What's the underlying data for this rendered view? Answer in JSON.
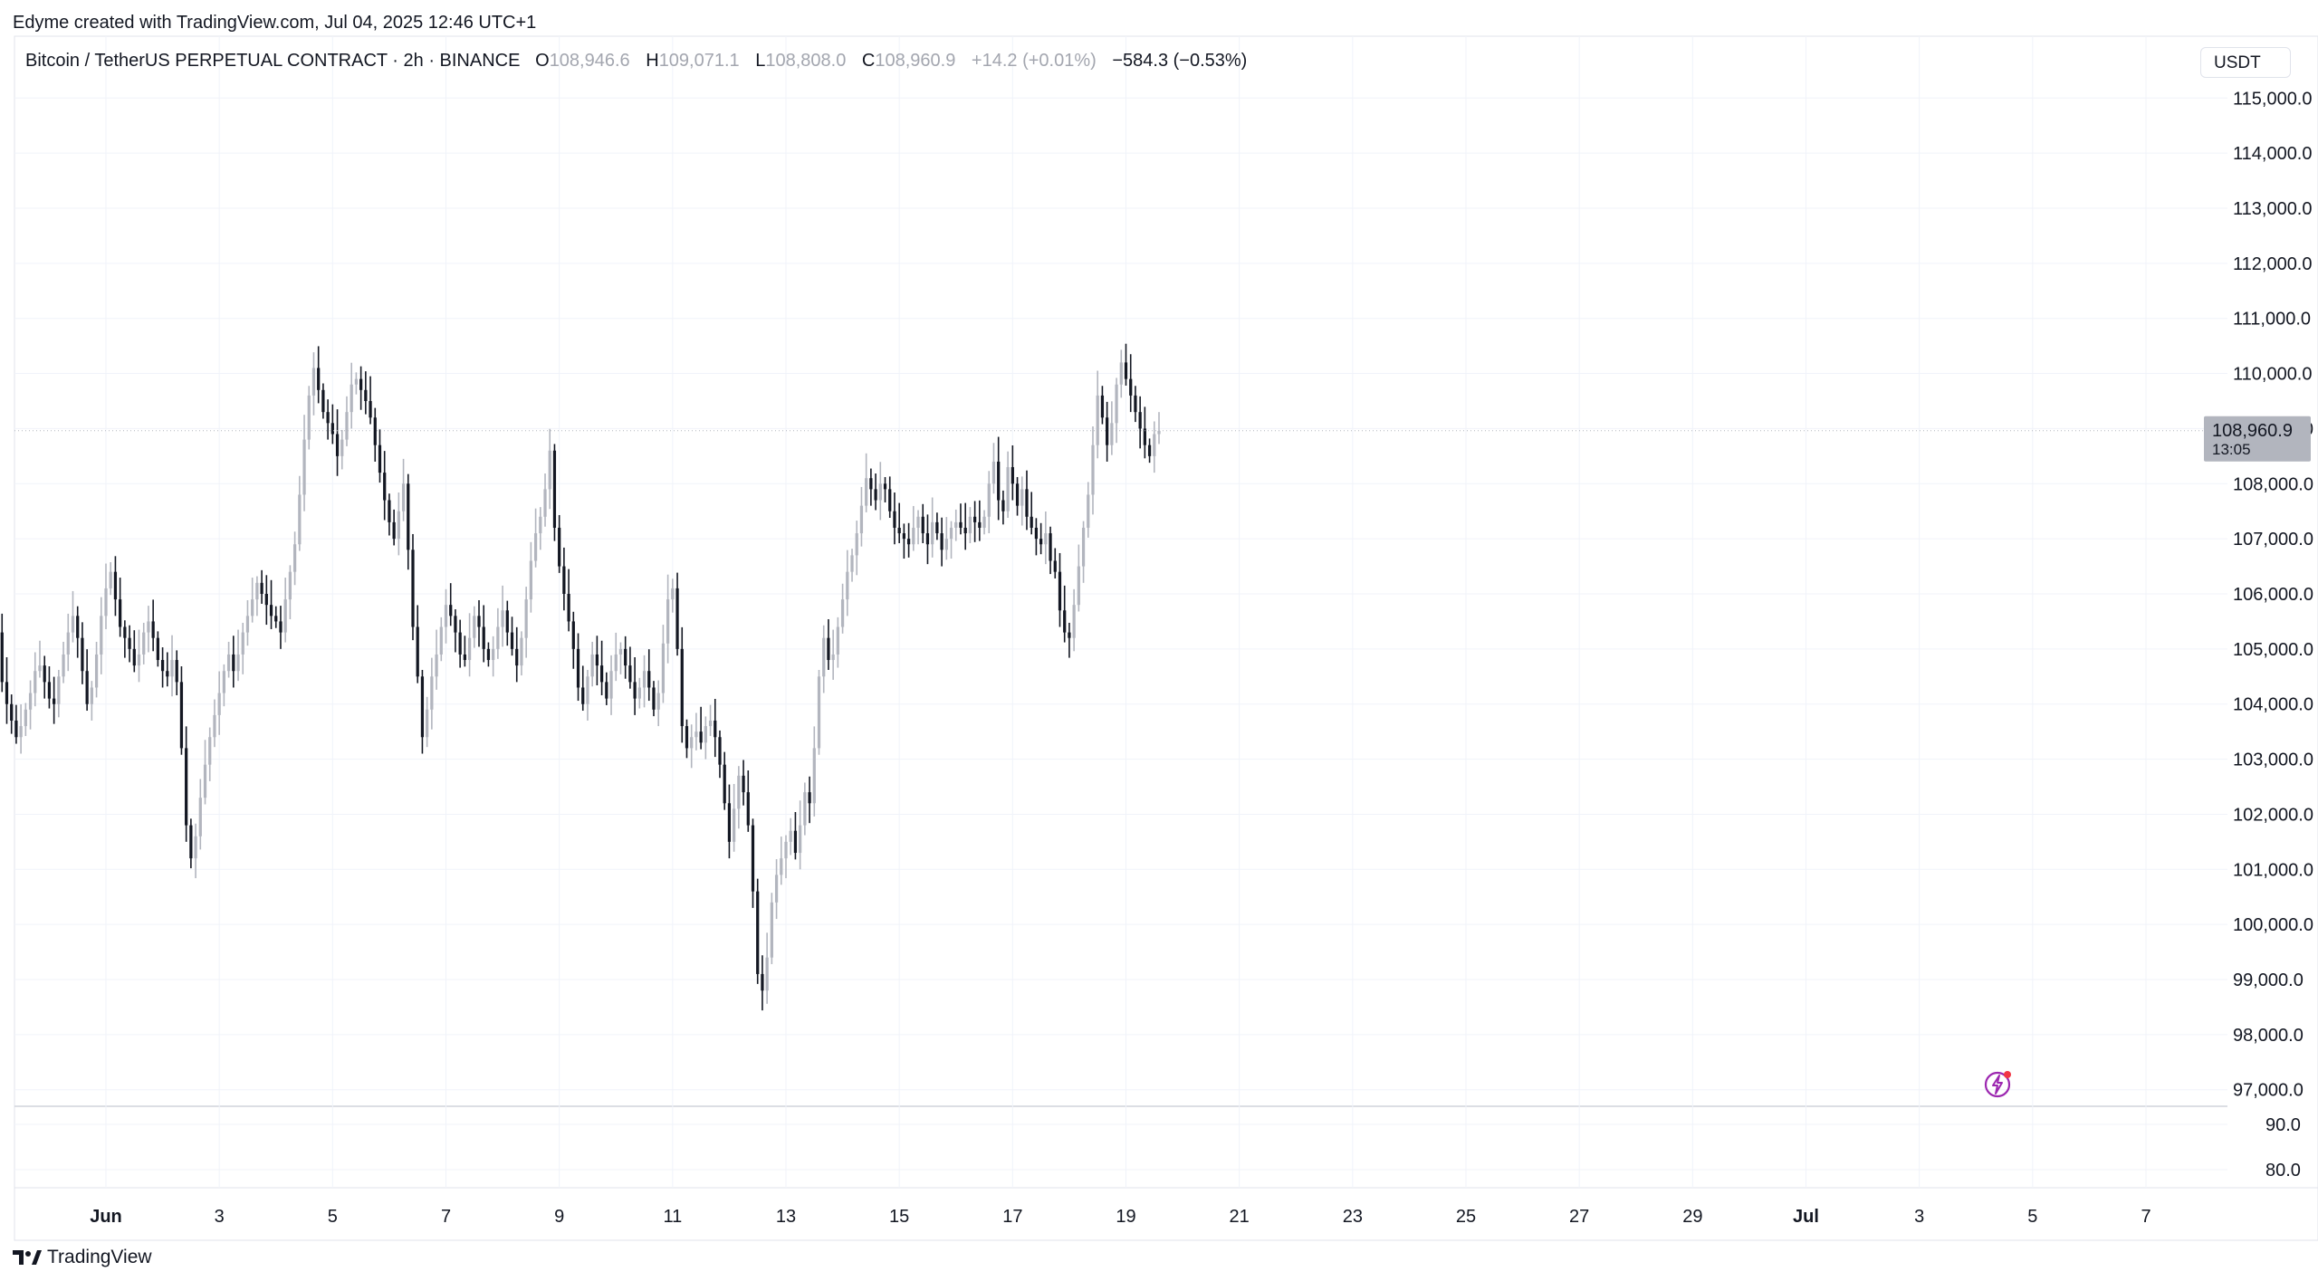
{
  "credit": "Edyme created with TradingView.com, Jul 04, 2025 12:46 UTC+1",
  "legend": {
    "symbol": "Bitcoin / TetherUS PERPETUAL CONTRACT · 2h · BINANCE",
    "o_label": "O",
    "o_value": "108,946.6",
    "h_label": "H",
    "h_value": "109,071.1",
    "l_label": "L",
    "l_value": "108,808.0",
    "c_label": "C",
    "c_value": "108,960.9",
    "change": "+14.2 (+0.01%)",
    "change2": "−584.3 (−0.53%)"
  },
  "currency_button": "USDT",
  "brand": "TradingView",
  "price_badge": {
    "price": "108,960.9",
    "countdown": "13:05"
  },
  "colors": {
    "up": "#b2b5be",
    "down": "#131722",
    "grid": "#f0f3fa",
    "badge": "#b2b5be"
  },
  "icons": {
    "brand": "tradingview-logo-icon",
    "alert": "lightning-alert-icon"
  },
  "chart_data": {
    "type": "candlestick",
    "title": "",
    "xlabel": "",
    "ylabel": "",
    "ylim": [
      96700,
      115300
    ],
    "current_price": 108960.9,
    "y_ticks": [
      "115,000.0",
      "114,000.0",
      "113,000.0",
      "112,000.0",
      "111,000.0",
      "110,000.0",
      "109,000.0",
      "108,000.0",
      "107,000.0",
      "106,000.0",
      "105,000.0",
      "104,000.0",
      "103,000.0",
      "102,000.0",
      "101,000.0",
      "100,000.0",
      "99,000.0",
      "98,000.0",
      "97,000.0"
    ],
    "y_tick_values": [
      115000,
      114000,
      113000,
      112000,
      111000,
      110000,
      109000,
      108000,
      107000,
      106000,
      105000,
      104000,
      103000,
      102000,
      101000,
      100000,
      99000,
      98000,
      97000
    ],
    "volume_ticks": [
      "90.0",
      "80.0"
    ],
    "volume_tick_values": [
      90,
      80
    ],
    "x_ticks": [
      "Jun",
      "3",
      "5",
      "7",
      "9",
      "11",
      "13",
      "15",
      "17",
      "19",
      "21",
      "23",
      "25",
      "27",
      "29",
      "Jul",
      "3",
      "5",
      "7"
    ],
    "x_tick_dates": [
      "2025-06-01",
      "2025-06-03",
      "2025-06-05",
      "2025-06-07",
      "2025-06-09",
      "2025-06-11",
      "2025-06-13",
      "2025-06-15",
      "2025-06-17",
      "2025-06-19",
      "2025-06-21",
      "2025-06-23",
      "2025-06-25",
      "2025-06-27",
      "2025-06-29",
      "2025-07-01",
      "2025-07-03",
      "2025-07-05",
      "2025-07-07"
    ],
    "bar_interval_hours": 2,
    "first_bar": "2025-05-30T00:00",
    "closes": [
      105800,
      105300,
      104400,
      104000,
      103700,
      103400,
      103600,
      103900,
      104200,
      104600,
      104700,
      104400,
      104100,
      104000,
      104500,
      104900,
      105300,
      105600,
      105200,
      104600,
      104000,
      104300,
      104900,
      105600,
      106100,
      106400,
      105900,
      105400,
      105200,
      105000,
      104700,
      104900,
      105300,
      105500,
      105200,
      104800,
      104600,
      104500,
      104800,
      104400,
      103200,
      101800,
      101200,
      101600,
      102300,
      102900,
      103400,
      103800,
      104200,
      104600,
      104900,
      104600,
      104900,
      105300,
      105600,
      105900,
      106200,
      106000,
      105800,
      105600,
      105500,
      105300,
      105900,
      106400,
      106900,
      107800,
      108800,
      109600,
      110100,
      109700,
      109300,
      109100,
      108900,
      108500,
      108800,
      109300,
      109800,
      109900,
      109700,
      109500,
      109200,
      108700,
      108200,
      107700,
      107300,
      107000,
      107500,
      108000,
      106800,
      105400,
      104500,
      103400,
      103900,
      104500,
      104900,
      105400,
      105800,
      105600,
      105300,
      104900,
      104800,
      105200,
      105600,
      105400,
      105000,
      104800,
      105000,
      105400,
      105700,
      105300,
      105000,
      104700,
      105200,
      105900,
      106600,
      107100,
      107400,
      107900,
      108600,
      107200,
      106500,
      106000,
      105500,
      105000,
      104300,
      104000,
      104500,
      104900,
      104700,
      104400,
      104100,
      104600,
      104900,
      105000,
      104700,
      104400,
      104100,
      104300,
      104600,
      104300,
      103900,
      104200,
      105100,
      105900,
      106100,
      105000,
      103600,
      103200,
      103400,
      103500,
      103300,
      103600,
      103700,
      103400,
      102900,
      102200,
      101500,
      102100,
      102700,
      102400,
      101800,
      100600,
      99100,
      98800,
      99400,
      100400,
      100900,
      101200,
      101500,
      101700,
      101300,
      101800,
      102400,
      102200,
      103200,
      104500,
      105200,
      104800,
      104900,
      105400,
      105900,
      106400,
      106700,
      107100,
      107600,
      108100,
      107900,
      107700,
      108000,
      107900,
      107500,
      107200,
      107100,
      107000,
      106900,
      107200,
      107400,
      107100,
      106900,
      107300,
      107100,
      106800,
      107000,
      107200,
      107300,
      107200,
      107100,
      107400,
      107300,
      107200,
      107400,
      108000,
      108400,
      107700,
      107500,
      108300,
      108000,
      107600,
      107900,
      107400,
      107200,
      107000,
      106900,
      107100,
      106600,
      106400,
      105700,
      105300,
      105200,
      105800,
      106500,
      107200,
      107800,
      108700,
      109600,
      109200,
      108700,
      109100,
      109800,
      110200,
      109900,
      109600,
      109300,
      109000,
      108700,
      108500,
      108900,
      108960
    ]
  }
}
